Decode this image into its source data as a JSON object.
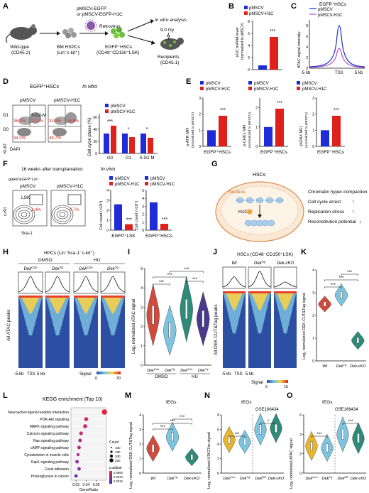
{
  "panels": {
    "A": {
      "letter": "A",
      "mouse": [
        "Wild-type",
        "(CD45.2)"
      ],
      "bm": [
        "BM HSPCs",
        "(Lin⁻c-kit⁺)"
      ],
      "vectors": [
        "pMSCV-EGFP",
        "or pMSCV-EGFP-H1C"
      ],
      "retrovirus": "Retrovirus",
      "sorted": [
        "EGFP⁺HSCs",
        "(CD48⁻CD150⁺LSK)"
      ],
      "invitro": "In vitro analysis",
      "dose": "9.0 Gy",
      "recipients": [
        "Recipients",
        "(CD45.1)"
      ]
    },
    "B": {
      "letter": "B",
      "legend": [
        "pMSCV",
        "pMSCV-H1C"
      ],
      "ylabel": [
        "H1C mRNA level",
        "(normalized to pMSCV)"
      ],
      "yticks": [
        "0",
        "2",
        "4",
        "6",
        "8"
      ],
      "sig": "***"
    },
    "C": {
      "letter": "C",
      "title": "EGFP⁺HSCs",
      "legend": [
        "pMSCV",
        "pMSCV-H1C"
      ],
      "ylabel": "ATAC signal intensity",
      "yticks": [
        "0",
        "2",
        "4",
        "6",
        "8"
      ],
      "xticks": [
        "-5 kb",
        "TSS",
        "5 kb"
      ]
    },
    "D": {
      "letter": "D",
      "title": "EGFP⁺HSCs",
      "mode": "In vitro",
      "cols": [
        "pMSCV",
        "pMSCV-H1C"
      ],
      "gates": [
        "G1",
        "S-G2-M",
        "G0"
      ],
      "pct_pmscv": [
        "36.3%",
        "27.7%",
        "34.0%"
      ],
      "pct_h1c": [
        "32.9%",
        "16.8%",
        "49.7%"
      ],
      "ylabel": "Ki-67",
      "xlabel": "DAPI",
      "legend": [
        "pMSCV",
        "pMSCV-H1C"
      ],
      "bar_ylabel": "Cell cycle phase (%)",
      "yticks": [
        "0",
        "20",
        "40",
        "60"
      ],
      "categories": [
        "G0",
        "G1",
        "S-G2-M"
      ],
      "sig": [
        "***",
        "*",
        "*"
      ]
    },
    "E": {
      "letter": "E",
      "legend": [
        "pMSCV",
        "pMSCV-H1C"
      ],
      "ylabels": [
        [
          "p-ATR MFI",
          "(normalized to pMSCV)"
        ],
        [
          "p-CHK1 MFI",
          "(normalized to pMSCV)"
        ],
        [
          "γH2AX MFI",
          "(normalized to pMSCV)"
        ]
      ],
      "yticks": [
        [
          "0",
          "1",
          "2",
          "3"
        ],
        [
          "0",
          "1",
          "2"
        ],
        [
          "0",
          "1",
          "2",
          "3"
        ]
      ],
      "xlabel": "EGFP⁺HSCs",
      "sig": "***"
    },
    "F": {
      "letter": "F",
      "title": "16 weeks after transplantation",
      "mode": "In vivo",
      "gated": "gated EGFP⁺Lin⁻",
      "cols": [
        "pMSCV",
        "pMSCV-H1C"
      ],
      "gate": "LSK",
      "pcts": [
        "1.4%",
        "0.7%"
      ],
      "ylabel": "c-Kit",
      "xlabel": "Sca-1",
      "legend": [
        "pMSCV",
        "pMSCV-H1C"
      ],
      "bar_ylabels": [
        "Cell count (×10⁴)",
        "Cell count (×10⁴)"
      ],
      "yticks1": [
        "0",
        "1",
        "2",
        "3",
        "4"
      ],
      "yticks2": [
        "0",
        "1",
        "2",
        "3",
        "4",
        "5"
      ],
      "xlabels": [
        "EGFP⁺LSK",
        "EGFP⁺HSCs"
      ],
      "sig": "***"
    },
    "G": {
      "letter": "G",
      "title": "HSCs",
      "nucleus": "Nucleus",
      "h1c": "H1C",
      "effects": [
        "Chromatin hyper-compaction",
        "Cell cycle arrest",
        "Replication stress",
        "Reconstitution potential"
      ],
      "arrows": [
        "↑",
        "↑",
        "↓"
      ]
    },
    "H": {
      "letter": "H",
      "title": "HPCs (Lin⁻Sca-1⁻c-kit⁺)",
      "groups": [
        "DMSO",
        "HU"
      ],
      "cols": [
        "Dek^Con",
        "Dek^Tg",
        "Dek^Con",
        "Dek^Tg"
      ],
      "ylabel": "All ATAC peaks",
      "xticks": [
        "-5 kb",
        "TSS",
        "5 kb"
      ],
      "signal": "Signal",
      "scale": [
        "0",
        "30"
      ]
    },
    "I": {
      "letter": "I",
      "ylabel": "Log₂ normalized ATAC signal",
      "yticks": [
        "0",
        "1",
        "2",
        "3",
        "4",
        "5"
      ],
      "cats": [
        "Dek^Con",
        "Dek^Tg",
        "Dek^Con",
        "Dek^Tg"
      ],
      "groups": [
        "DMSO",
        "HU"
      ],
      "sig": "***"
    },
    "J": {
      "letter": "J",
      "title": "HSCs (CD48⁻CD150⁺LSK)",
      "cols": [
        "Wt",
        "Dek^Tg",
        "Dek-cKO"
      ],
      "ylabel": "All DEK CUT&Tag peaks",
      "xticks": [
        "-5 kb",
        "TSS",
        "5 kb"
      ],
      "signal": "Signal",
      "scale": [
        "0",
        "15"
      ]
    },
    "K": {
      "letter": "K",
      "ylabel": "Log₂ normalized DEK CUT&Tag signal",
      "yticks": [
        "0",
        "1",
        "2",
        "3",
        "4"
      ],
      "cats": [
        "Wt",
        "Dek^Tg",
        "Dek-cKO"
      ],
      "sig": "***"
    },
    "L": {
      "letter": "L",
      "title": "KEGG enrichment (Top 10)",
      "pathways": [
        "Neuroactive ligand-receptor interaction",
        "PI3K-Akt signaling",
        "MAPK signaling pathway",
        "Calcium signaling pathway",
        "Ras signaling pathway",
        "cAMP signaling pathway",
        "Cytoskeleton in muscle cells",
        "Rap1 signaling pathway",
        "Focal adhesion",
        "Proteoglycans in cancer"
      ],
      "xlabel": "GeneRatio",
      "xticks": [
        "0.03",
        "0.04",
        "0.05"
      ],
      "count_label": "Count",
      "count_vals": [
        "100",
        "150",
        "200",
        "250"
      ],
      "padj_label": "p.adjust",
      "padj_vals": [
        "0.0005",
        "0.0010",
        "0.0015"
      ]
    },
    "M": {
      "letter": "M",
      "title": "IEGs",
      "ylabel": "Log₂ normalized DEK CUT&Tag signal",
      "yticks": [
        "0",
        "1",
        "2",
        "3",
        "4"
      ],
      "cats": [
        "Wt",
        "Dek^Tg",
        "Dek-cKO"
      ],
      "sig": "***"
    },
    "N": {
      "letter": "N",
      "title": "IEGs",
      "dataset": "GSE166434",
      "ylabel": "Log₂ normalized H3K27ac signal",
      "yticks": [
        "0",
        "2",
        "4",
        "6",
        "8"
      ],
      "cats": [
        "Dek^Con",
        "Dek^Tg",
        "Dek^fl/fl",
        "Dek-cKO"
      ],
      "sig": [
        "***",
        "*"
      ]
    },
    "O": {
      "letter": "O",
      "title": "IEGs",
      "dataset": "GSE166434",
      "ylabel": "Log₂ normalized ATAC signal",
      "yticks": [
        "0",
        "2",
        "4",
        "6"
      ],
      "cats": [
        "Dek^Con",
        "Dek^Tg",
        "Dek^fl/fl",
        "Dek-cKO"
      ],
      "sig": [
        "***",
        "***"
      ]
    }
  },
  "colors": {
    "pmscv": "#1f2bd6",
    "h1c": "#e0201b",
    "wt": "#d14b3c",
    "tg": "#7dc4e0",
    "cko": "#2e8b7a",
    "con": "#e8b52b",
    "purple": "#4a3a8c"
  }
}
